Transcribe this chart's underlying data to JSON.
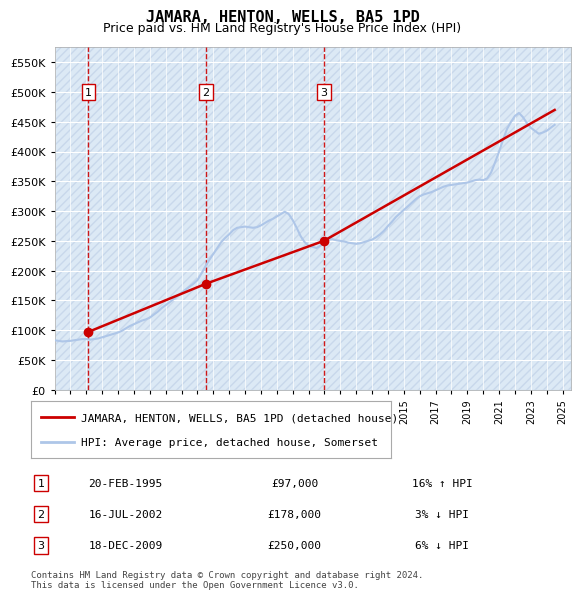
{
  "title": "JAMARA, HENTON, WELLS, BA5 1PD",
  "subtitle": "Price paid vs. HM Land Registry's House Price Index (HPI)",
  "ylabel": "",
  "ylim": [
    0,
    575000
  ],
  "yticks": [
    0,
    50000,
    100000,
    150000,
    200000,
    250000,
    300000,
    350000,
    400000,
    450000,
    500000,
    550000
  ],
  "ytick_labels": [
    "£0",
    "£50K",
    "£100K",
    "£150K",
    "£200K",
    "£250K",
    "£300K",
    "£350K",
    "£400K",
    "£450K",
    "£500K",
    "£550K"
  ],
  "xlim_start": 1993.0,
  "xlim_end": 2025.5,
  "hpi_color": "#aec6e8",
  "price_color": "#cc0000",
  "sale_marker_color": "#cc0000",
  "dashed_line_color": "#cc0000",
  "background_color": "#dce9f5",
  "hatch_color": "#c0d0e8",
  "grid_color": "#ffffff",
  "sale_points": [
    {
      "num": 1,
      "year": 1995.13,
      "price": 97000,
      "label": "20-FEB-1995",
      "amount": "£97,000",
      "hpi_rel": "16% ↑ HPI"
    },
    {
      "num": 2,
      "year": 2002.54,
      "price": 178000,
      "label": "16-JUL-2002",
      "amount": "£178,000",
      "hpi_rel": "3% ↓ HPI"
    },
    {
      "num": 3,
      "year": 2009.96,
      "price": 250000,
      "label": "18-DEC-2009",
      "amount": "£250,000",
      "hpi_rel": "6% ↓ HPI"
    }
  ],
  "legend_line1": "JAMARA, HENTON, WELLS, BA5 1PD (detached house)",
  "legend_line2": "HPI: Average price, detached house, Somerset",
  "footnote": "Contains HM Land Registry data © Crown copyright and database right 2024.\nThis data is licensed under the Open Government Licence v3.0.",
  "hpi_data_x": [
    1993.0,
    1993.25,
    1993.5,
    1993.75,
    1994.0,
    1994.25,
    1994.5,
    1994.75,
    1995.0,
    1995.25,
    1995.5,
    1995.75,
    1996.0,
    1996.25,
    1996.5,
    1996.75,
    1997.0,
    1997.25,
    1997.5,
    1997.75,
    1998.0,
    1998.25,
    1998.5,
    1998.75,
    1999.0,
    1999.25,
    1999.5,
    1999.75,
    2000.0,
    2000.25,
    2000.5,
    2000.75,
    2001.0,
    2001.25,
    2001.5,
    2001.75,
    2002.0,
    2002.25,
    2002.5,
    2002.75,
    2003.0,
    2003.25,
    2003.5,
    2003.75,
    2004.0,
    2004.25,
    2004.5,
    2004.75,
    2005.0,
    2005.25,
    2005.5,
    2005.75,
    2006.0,
    2006.25,
    2006.5,
    2006.75,
    2007.0,
    2007.25,
    2007.5,
    2007.75,
    2008.0,
    2008.25,
    2008.5,
    2008.75,
    2009.0,
    2009.25,
    2009.5,
    2009.75,
    2010.0,
    2010.25,
    2010.5,
    2010.75,
    2011.0,
    2011.25,
    2011.5,
    2011.75,
    2012.0,
    2012.25,
    2012.5,
    2012.75,
    2013.0,
    2013.25,
    2013.5,
    2013.75,
    2014.0,
    2014.25,
    2014.5,
    2014.75,
    2015.0,
    2015.25,
    2015.5,
    2015.75,
    2016.0,
    2016.25,
    2016.5,
    2016.75,
    2017.0,
    2017.25,
    2017.5,
    2017.75,
    2018.0,
    2018.25,
    2018.5,
    2018.75,
    2019.0,
    2019.25,
    2019.5,
    2019.75,
    2020.0,
    2020.25,
    2020.5,
    2020.75,
    2021.0,
    2021.25,
    2021.5,
    2021.75,
    2022.0,
    2022.25,
    2022.5,
    2022.75,
    2023.0,
    2023.25,
    2023.5,
    2023.75,
    2024.0,
    2024.25,
    2024.5
  ],
  "hpi_data_y": [
    83000,
    82000,
    81000,
    81500,
    82000,
    83000,
    84000,
    85000,
    85000,
    84000,
    85000,
    86000,
    88000,
    90000,
    92000,
    94000,
    96000,
    99000,
    103000,
    107000,
    110000,
    113000,
    116000,
    118000,
    121000,
    126000,
    131000,
    137000,
    142000,
    147000,
    152000,
    158000,
    163000,
    168000,
    173000,
    178000,
    184000,
    195000,
    207000,
    218000,
    228000,
    238000,
    248000,
    255000,
    261000,
    268000,
    272000,
    273000,
    274000,
    273000,
    272000,
    273000,
    276000,
    280000,
    284000,
    287000,
    291000,
    295000,
    299000,
    295000,
    285000,
    272000,
    258000,
    248000,
    242000,
    240000,
    238000,
    242000,
    248000,
    252000,
    253000,
    251000,
    250000,
    249000,
    247000,
    246000,
    245000,
    246000,
    248000,
    250000,
    252000,
    256000,
    261000,
    267000,
    275000,
    282000,
    290000,
    296000,
    302000,
    308000,
    314000,
    320000,
    325000,
    328000,
    330000,
    332000,
    335000,
    338000,
    341000,
    343000,
    344000,
    345000,
    346000,
    347000,
    348000,
    350000,
    352000,
    353000,
    352000,
    355000,
    365000,
    382000,
    400000,
    420000,
    438000,
    450000,
    460000,
    465000,
    458000,
    448000,
    440000,
    435000,
    430000,
    432000,
    435000,
    440000,
    445000
  ],
  "price_line_x": [
    1995.13,
    2002.54,
    2009.96,
    2024.5
  ],
  "price_line_y": [
    97000,
    178000,
    250000,
    470000
  ]
}
